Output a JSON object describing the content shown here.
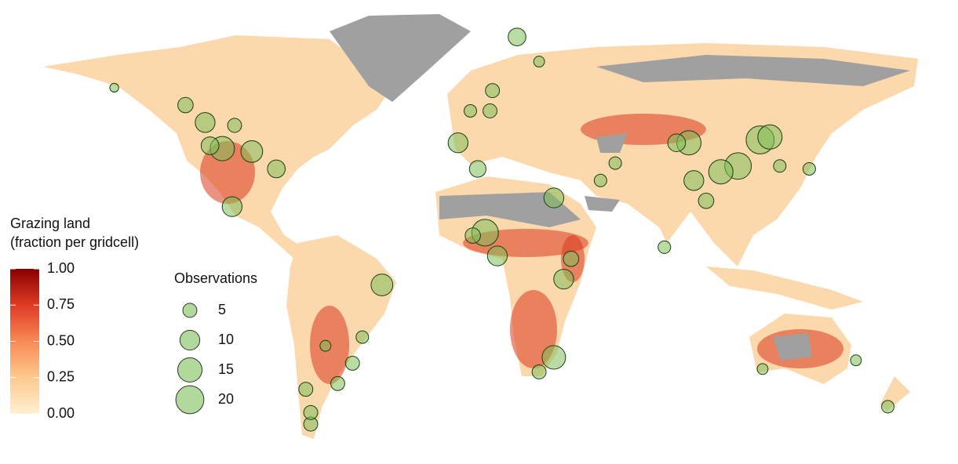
{
  "legend": {
    "title": [
      "Grazing land",
      "(fraction per gridcell)"
    ],
    "colorbar": {
      "ticks": [
        {
          "value": 0,
          "label": "0.00"
        },
        {
          "value": 0.25,
          "label": "0.25"
        },
        {
          "value": 0.5,
          "label": "0.50"
        },
        {
          "value": 0.75,
          "label": "0.75"
        },
        {
          "value": 1,
          "label": "1.00"
        }
      ],
      "colors": [
        "#fff0d2",
        "#fdc98e",
        "#f98a55",
        "#de3b25",
        "#8b0000"
      ]
    },
    "size_title": "Observations",
    "sizes": [
      5,
      10,
      15,
      20
    ]
  },
  "point_color": "#7fbf5a",
  "points": [
    {
      "lon": 15,
      "lat": 80.5,
      "n": 8
    },
    {
      "lon": -120,
      "lat": 57,
      "n": 6
    },
    {
      "lon": -112,
      "lat": 51,
      "n": 10
    },
    {
      "lon": -105,
      "lat": 42,
      "n": 15
    },
    {
      "lon": -93,
      "lat": 41,
      "n": 12
    },
    {
      "lon": -101,
      "lat": 22,
      "n": 10
    },
    {
      "lon": -83,
      "lat": 35,
      "n": 8
    },
    {
      "lon": -110,
      "lat": 43,
      "n": 8
    },
    {
      "lon": -100,
      "lat": 50,
      "n": 5
    },
    {
      "lon": -149,
      "lat": 63,
      "n": 2
    },
    {
      "lon": -9,
      "lat": 44,
      "n": 10
    },
    {
      "lon": -1,
      "lat": 35,
      "n": 7
    },
    {
      "lon": 5,
      "lat": 62,
      "n": 5
    },
    {
      "lon": -4,
      "lat": 55,
      "n": 4
    },
    {
      "lon": 4,
      "lat": 55,
      "n": 5
    },
    {
      "lon": 24,
      "lat": 72,
      "n": 3
    },
    {
      "lon": 30,
      "lat": 25,
      "n": 10
    },
    {
      "lon": 2,
      "lat": 13,
      "n": 18
    },
    {
      "lon": -3,
      "lat": 12,
      "n": 6
    },
    {
      "lon": 7,
      "lat": 5,
      "n": 10
    },
    {
      "lon": 37,
      "lat": 4,
      "n": 6
    },
    {
      "lon": 34,
      "lat": -3,
      "n": 10
    },
    {
      "lon": 30,
      "lat": -30,
      "n": 14
    },
    {
      "lon": 24,
      "lat": -35,
      "n": 5
    },
    {
      "lon": -40,
      "lat": -5,
      "n": 12
    },
    {
      "lon": -48,
      "lat": -23,
      "n": 4
    },
    {
      "lon": -52,
      "lat": -32,
      "n": 5
    },
    {
      "lon": -58,
      "lat": -39,
      "n": 5
    },
    {
      "lon": -71,
      "lat": -41,
      "n": 5
    },
    {
      "lon": -69,
      "lat": -53,
      "n": 5
    },
    {
      "lon": -69,
      "lat": -49,
      "n": 5
    },
    {
      "lon": -63,
      "lat": -26,
      "n": 3
    },
    {
      "lon": 85,
      "lat": 44,
      "n": 15
    },
    {
      "lon": 80,
      "lat": 44,
      "n": 8
    },
    {
      "lon": 114,
      "lat": 45,
      "n": 20
    },
    {
      "lon": 118,
      "lat": 46,
      "n": 15
    },
    {
      "lon": 105,
      "lat": 36,
      "n": 18
    },
    {
      "lon": 98,
      "lat": 34,
      "n": 15
    },
    {
      "lon": 87,
      "lat": 31,
      "n": 10
    },
    {
      "lon": 92,
      "lat": 24,
      "n": 6
    },
    {
      "lon": 134,
      "lat": 35,
      "n": 4
    },
    {
      "lon": 75,
      "lat": 8,
      "n": 4
    },
    {
      "lon": 49,
      "lat": 31,
      "n": 4
    },
    {
      "lon": 166,
      "lat": -47,
      "n": 4
    },
    {
      "lon": 153,
      "lat": -31,
      "n": 3
    },
    {
      "lon": 115,
      "lat": -34,
      "n": 3
    },
    {
      "lon": 55,
      "lat": 37,
      "n": 4
    },
    {
      "lon": 122,
      "lat": 36,
      "n": 4
    }
  ]
}
